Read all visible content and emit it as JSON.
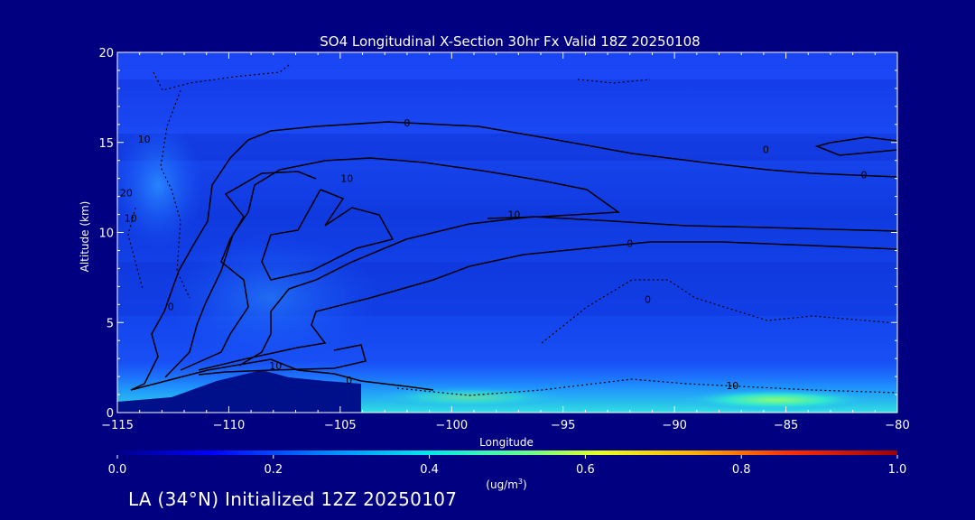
{
  "chart_data": {
    "type": "heatmap",
    "title": "SO4 Longitudinal X-Section 30hr  Fx Valid 18Z 20250108",
    "xlabel": "Longitude",
    "ylabel": "Altitude (km)",
    "xlim": [
      -115,
      -80
    ],
    "ylim": [
      0,
      20
    ],
    "x_ticks": [
      -115,
      -110,
      -105,
      -100,
      -95,
      -90,
      -85,
      -80
    ],
    "x_tick_labels": [
      "−115",
      "−110",
      "−105",
      "−100",
      "−95",
      "−90",
      "−85",
      "−80"
    ],
    "y_ticks": [
      0,
      5,
      10,
      15,
      20
    ],
    "y_tick_labels": [
      "0",
      "5",
      "10",
      "15",
      "20"
    ],
    "colorbar": {
      "min": 0.0,
      "max": 1.0,
      "ticks": [
        0.0,
        0.2,
        0.4,
        0.6,
        0.8,
        1.0
      ],
      "tick_labels": [
        "0.0",
        "0.2",
        "0.4",
        "0.6",
        "0.8",
        "1.0"
      ],
      "unit_prefix": "(ug/m",
      "unit_sup": "3",
      "unit_suffix": ")",
      "colors": [
        "#00008b",
        "#0000ff",
        "#0090ff",
        "#00e8e8",
        "#60ff90",
        "#e8ff20",
        "#ffb000",
        "#ff3000",
        "#a00000"
      ]
    },
    "background_concentration": 0.07,
    "surface_maxima": [
      {
        "x_range": [
          -104,
          -95
        ],
        "value": 0.35
      },
      {
        "x_range": [
          -88,
          -80
        ],
        "value": 0.5
      }
    ],
    "terrain_peak": {
      "lon": -108.5,
      "alt_km": 2.2
    },
    "contour_labels": [
      {
        "text": "0",
        "lon": -102,
        "alt": 16.1
      },
      {
        "text": "10",
        "lon": -104.7,
        "alt": 13.0
      },
      {
        "text": "10",
        "lon": -97.2,
        "alt": 11.0
      },
      {
        "text": "0",
        "lon": -92,
        "alt": 9.4
      },
      {
        "text": "0",
        "lon": -85.9,
        "alt": 14.6
      },
      {
        "text": "0",
        "lon": -81.5,
        "alt": 13.2
      },
      {
        "text": "10",
        "lon": -113.8,
        "alt": 15.2
      },
      {
        "text": "20",
        "lon": -114.6,
        "alt": 12.2
      },
      {
        "text": "10",
        "lon": -114.4,
        "alt": 10.8
      },
      {
        "text": "0",
        "lon": -112.6,
        "alt": 5.9
      },
      {
        "text": "10",
        "lon": -107.9,
        "alt": 2.6
      },
      {
        "text": "0",
        "lon": -104.6,
        "alt": 1.8
      },
      {
        "text": "10",
        "lon": -87.4,
        "alt": 1.5
      },
      {
        "text": "0",
        "lon": -91.2,
        "alt": 6.3
      }
    ]
  },
  "footer": {
    "station_text": "LA (34°N) Initialized 12Z 20250107"
  },
  "colors": {
    "page_background": "#000080",
    "axis": "#ffffff",
    "contour": "#000000"
  }
}
